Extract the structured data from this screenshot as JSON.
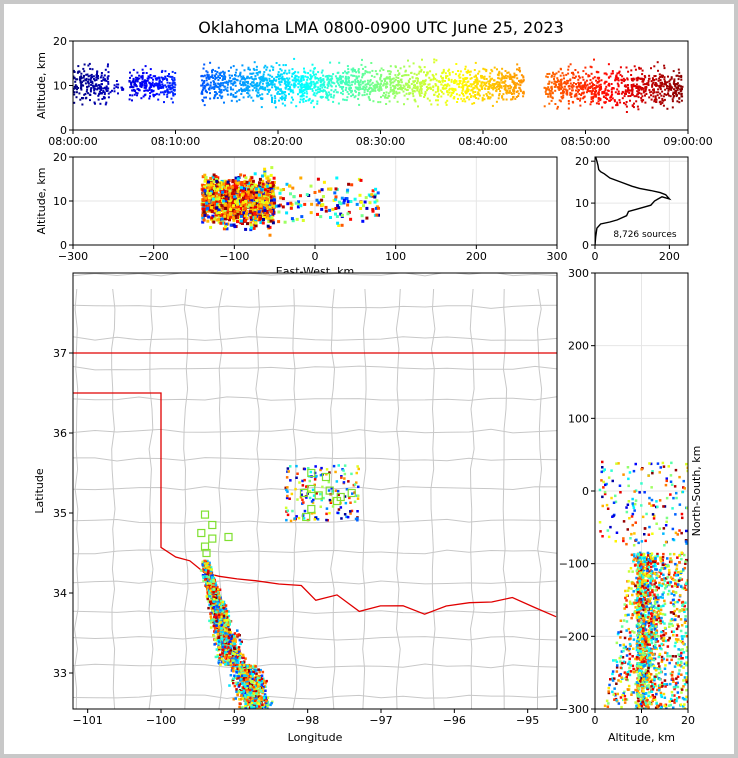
{
  "title": "Oklahoma LMA 0800-0900 UTC June 25, 2023",
  "chart_data": [
    {
      "id": "alt_time",
      "type": "scatter",
      "ylabel": "Altitude, km",
      "xlim": [
        "08:00:00",
        "09:00:00"
      ],
      "ylim": [
        0,
        20
      ],
      "x_ticks": [
        "08:00:00",
        "08:10:00",
        "08:20:00",
        "08:30:00",
        "08:40:00",
        "08:50:00",
        "09:00:00"
      ],
      "y_ticks": [
        "0",
        "10",
        "20"
      ],
      "point_color": "time (blue to red)",
      "clusters": [
        {
          "t_start": "08:00:00",
          "t_end": "08:03:30",
          "alt_range": [
            5,
            20
          ],
          "density": "high"
        },
        {
          "t_start": "08:03:30",
          "t_end": "08:05:00",
          "alt_range": [
            6,
            16
          ],
          "density": "low"
        },
        {
          "t_start": "08:05:30",
          "t_end": "08:10:00",
          "alt_range": [
            6,
            18
          ],
          "density": "high"
        },
        {
          "t_start": "08:12:30",
          "t_end": "08:44:00",
          "alt_range": [
            5,
            20
          ],
          "density": "high"
        },
        {
          "t_start": "08:46:00",
          "t_end": "08:59:30",
          "alt_range": [
            4,
            20
          ],
          "density": "high"
        }
      ]
    },
    {
      "id": "alt_ew",
      "type": "scatter",
      "xlabel": "East-West, km",
      "ylabel": "Altitude, km",
      "xlim": [
        -300,
        300
      ],
      "ylim": [
        0,
        20
      ],
      "x_ticks": [
        "−300",
        "−200",
        "−100",
        "0",
        "100",
        "200",
        "300"
      ],
      "y_ticks": [
        "0",
        "10",
        "20"
      ],
      "clusters": [
        {
          "x_range": [
            -140,
            -50
          ],
          "alt_range": [
            2,
            20
          ],
          "density": "high"
        },
        {
          "x_range": [
            -50,
            80
          ],
          "alt_range": [
            2,
            20
          ],
          "density": "low"
        }
      ]
    },
    {
      "id": "alt_hist",
      "type": "line",
      "xlim": [
        0,
        250
      ],
      "ylim": [
        0,
        21
      ],
      "x_ticks": [
        "0",
        "200"
      ],
      "y_ticks": [
        "0",
        "10",
        "20"
      ],
      "annotation": "8,726 sources",
      "x": [
        0,
        2,
        5,
        15,
        40,
        60,
        85,
        90,
        110,
        130,
        150,
        160,
        170,
        180,
        200,
        190,
        175,
        150,
        120,
        100,
        70,
        40,
        25,
        15,
        10,
        8,
        5,
        2
      ],
      "y": [
        0,
        2,
        4,
        5,
        5.5,
        6,
        7,
        8,
        8.5,
        9,
        9.5,
        10.5,
        11,
        11.5,
        11,
        12,
        12.5,
        13,
        13.5,
        14,
        15,
        16,
        17,
        17.5,
        18,
        19,
        20,
        21
      ]
    },
    {
      "id": "plan_map",
      "type": "scatter",
      "xlabel": "Longitude",
      "ylabel": "Latitude",
      "xlim": [
        -101.2,
        -94.6
      ],
      "ylim": [
        32.55,
        38.0
      ],
      "x_ticks": [
        "−101",
        "−100",
        "−99",
        "−98",
        "−97",
        "−96",
        "−95"
      ],
      "y_ticks": [
        "33",
        "34",
        "35",
        "36",
        "37"
      ],
      "stations": [
        [
          -97.95,
          35.5
        ],
        [
          -97.75,
          35.45
        ],
        [
          -97.95,
          35.3
        ],
        [
          -97.85,
          35.22
        ],
        [
          -98.05,
          35.25
        ],
        [
          -97.55,
          35.2
        ],
        [
          -97.4,
          35.25
        ],
        [
          -97.6,
          35.15
        ],
        [
          -97.95,
          35.05
        ],
        [
          -98.02,
          34.95
        ],
        [
          -97.7,
          35.28
        ],
        [
          -99.4,
          34.98
        ],
        [
          -99.3,
          34.85
        ],
        [
          -99.45,
          34.75
        ],
        [
          -99.3,
          34.68
        ],
        [
          -99.4,
          34.58
        ],
        [
          -99.08,
          34.7
        ],
        [
          -99.38,
          34.5
        ]
      ],
      "clusters": [
        {
          "lon_range": [
            -99.5,
            -98.6
          ],
          "lat_range": [
            32.55,
            34.4
          ],
          "density": "high"
        },
        {
          "lon_range": [
            -98.3,
            -97.3
          ],
          "lat_range": [
            34.9,
            35.6
          ],
          "density": "low"
        }
      ]
    },
    {
      "id": "ns_alt",
      "type": "scatter",
      "xlabel": "Altitude, km",
      "ylabel": "North-South, km",
      "xlim": [
        0,
        20
      ],
      "ylim": [
        -300,
        300
      ],
      "x_ticks": [
        "0",
        "10",
        "20"
      ],
      "y_ticks": [
        "−300",
        "−200",
        "−100",
        "0",
        "100",
        "200",
        "300"
      ],
      "clusters": [
        {
          "alt_range": [
            2,
            20
          ],
          "ns_range": [
            -300,
            -85
          ],
          "density": "high"
        },
        {
          "alt_range": [
            1,
            20
          ],
          "ns_range": [
            -75,
            40
          ],
          "density": "low"
        }
      ]
    }
  ]
}
